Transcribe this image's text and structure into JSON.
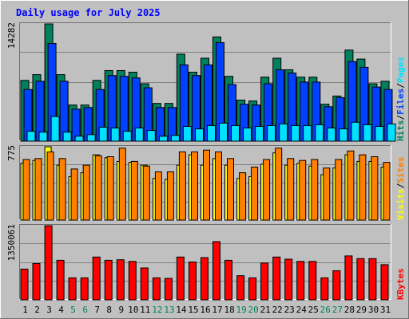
{
  "colors": {
    "background": "#c0c0c0",
    "title": "#0000ff",
    "hits": "#00805c",
    "files": "#0040ff",
    "pages": "#00e0ff",
    "visits": "#ffff00",
    "sites": "#ff8000",
    "kbytes": "#ff0000",
    "weekend_day": "#00805c",
    "weekday": "#000000"
  },
  "chart_data": {
    "type": "bar",
    "title": "Daily usage for July 2025",
    "categories": [
      "1",
      "2",
      "3",
      "4",
      "5",
      "6",
      "7",
      "8",
      "9",
      "10",
      "11",
      "12",
      "13",
      "14",
      "15",
      "16",
      "17",
      "18",
      "19",
      "20",
      "21",
      "22",
      "23",
      "24",
      "25",
      "26",
      "27",
      "28",
      "29",
      "30",
      "31"
    ],
    "weekend_days": [
      "5",
      "6",
      "12",
      "13",
      "19",
      "20",
      "26",
      "27"
    ],
    "panels": [
      {
        "id": "hits-files-pages",
        "max_label": "14282",
        "ymax": 14282,
        "legend": [
          {
            "text": "Hits",
            "color": "#00805c"
          },
          {
            "text": "/",
            "color": "#000000"
          },
          {
            "text": "Files",
            "color": "#0040ff"
          },
          {
            "text": "/",
            "color": "#000000"
          },
          {
            "text": "Pages",
            "color": "#00e0ff"
          }
        ],
        "series": [
          {
            "name": "Hits",
            "color": "#00805c",
            "values": [
              7400,
              8100,
              14282,
              8100,
              4400,
              4400,
              7400,
              8600,
              8600,
              8400,
              7000,
              4600,
              4600,
              10600,
              8400,
              10100,
              12700,
              7900,
              5000,
              4900,
              7800,
              10100,
              8700,
              7800,
              7800,
              4500,
              5500,
              11100,
              10000,
              7000,
              7300
            ]
          },
          {
            "name": "Files",
            "color": "#0040ff",
            "values": [
              6300,
              7300,
              11900,
              7300,
              3900,
              4100,
              6300,
              8000,
              7900,
              7700,
              6500,
              4100,
              4100,
              9300,
              8000,
              9300,
              12000,
              6900,
              4500,
              4400,
              7000,
              8700,
              8300,
              7200,
              7200,
              4200,
              5300,
              9700,
              9000,
              6600,
              6300
            ]
          },
          {
            "name": "Pages",
            "color": "#00e0ff",
            "values": [
              1200,
              1100,
              3000,
              1100,
              600,
              800,
              1700,
              1600,
              1200,
              1600,
              1300,
              600,
              700,
              1800,
              1500,
              1900,
              2200,
              1900,
              1600,
              1800,
              1900,
              2100,
              1900,
              1900,
              2000,
              1600,
              1500,
              2300,
              2000,
              1800,
              2100
            ]
          }
        ]
      },
      {
        "id": "visits-sites",
        "max_label": "775",
        "ymax": 775,
        "legend": [
          {
            "text": "Visits",
            "color": "#ffff00"
          },
          {
            "text": "/",
            "color": "#000000"
          },
          {
            "text": "Sites",
            "color": "#ff8000"
          }
        ],
        "series": [
          {
            "name": "Visits",
            "color": "#ffff00",
            "values": [
              600,
              630,
              775,
              580,
              460,
              500,
              690,
              660,
              620,
              610,
              580,
              440,
              430,
              580,
              690,
              580,
              650,
              580,
              440,
              460,
              590,
              710,
              580,
              600,
              570,
              480,
              550,
              690,
              620,
              620,
              560
            ]
          },
          {
            "name": "Sites",
            "color": "#ff8000",
            "values": [
              640,
              650,
              720,
              650,
              540,
              580,
              680,
              670,
              760,
              620,
              570,
              510,
              510,
              720,
              720,
              740,
              720,
              650,
              500,
              560,
              640,
              760,
              650,
              630,
              640,
              550,
              640,
              730,
              690,
              670,
              610
            ]
          }
        ]
      },
      {
        "id": "kbytes",
        "max_label": "1350061",
        "ymax": 1350061,
        "legend": [
          {
            "text": "KBytes",
            "color": "#ff0000"
          }
        ],
        "series": [
          {
            "name": "KBytes",
            "color": "#ff0000",
            "values": [
              560000,
              660000,
              1350061,
              720000,
              400000,
              400000,
              780000,
              720000,
              730000,
              700000,
              580000,
              400000,
              390000,
              780000,
              690000,
              770000,
              1060000,
              720000,
              440000,
              400000,
              670000,
              780000,
              740000,
              700000,
              700000,
              400000,
              530000,
              800000,
              750000,
              750000,
              640000
            ]
          }
        ]
      }
    ]
  }
}
